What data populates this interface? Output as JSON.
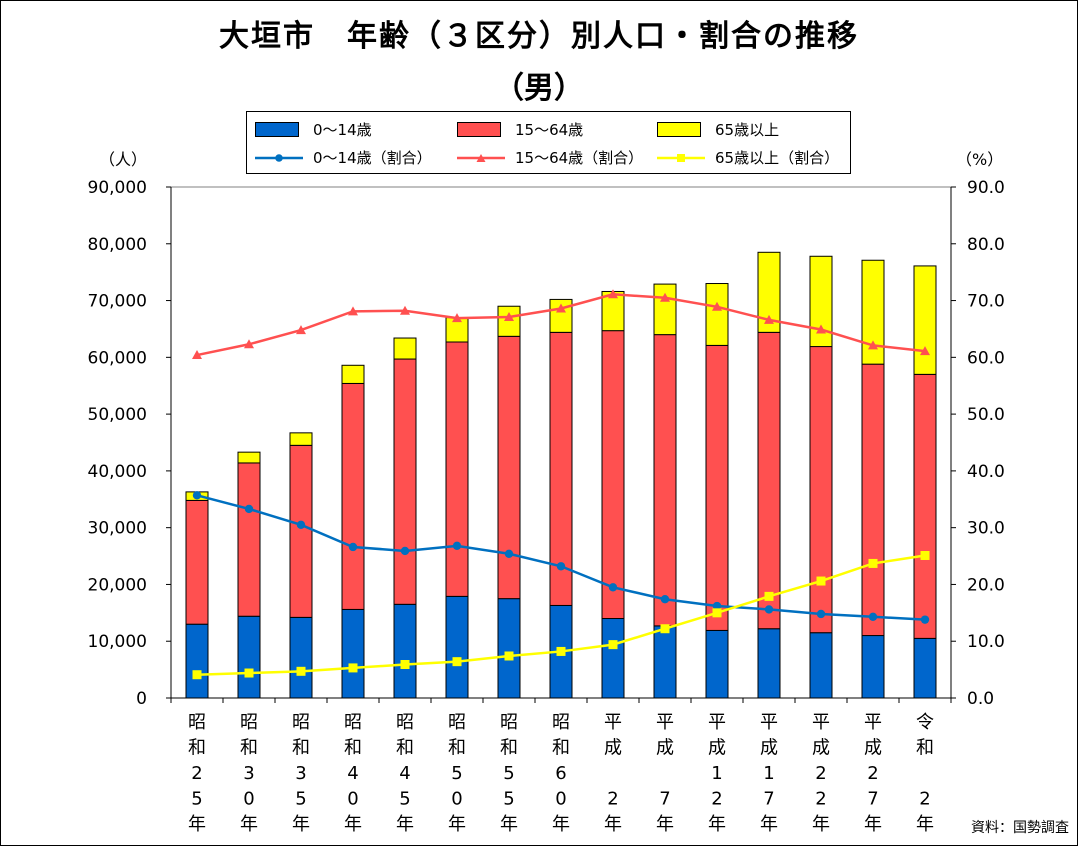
{
  "title": "大垣市　年齢（３区分）別人口・割合の推移",
  "subtitle": "（男）",
  "source": "資料：国勢調査",
  "colors": {
    "young": "#0066CC",
    "working": "#FF5050",
    "elderly": "#FFFF00",
    "young_line": "#0070C0",
    "working_line": "#FF5050",
    "elderly_line": "#FFFF00",
    "axis": "#000000"
  },
  "legend": {
    "young_bar": "0～14歳",
    "working_bar": "15～64歳",
    "elderly_bar": "65歳以上",
    "young_line": "0～14歳（割合）",
    "working_line": "15～64歳（割合）",
    "elderly_line": "65歳以上（割合）"
  },
  "chart_data": {
    "type": "bar",
    "stacked": true,
    "categories": [
      "昭和25年",
      "昭和30年",
      "昭和35年",
      "昭和40年",
      "昭和45年",
      "昭和50年",
      "昭和55年",
      "昭和60年",
      "平成2年",
      "平成7年",
      "平成12年",
      "平成17年",
      "平成22年",
      "平成27年",
      "令和2年"
    ],
    "tick_labels": [
      [
        "昭",
        "和",
        "2",
        "5",
        "年"
      ],
      [
        "昭",
        "和",
        "3",
        "0",
        "年"
      ],
      [
        "昭",
        "和",
        "3",
        "5",
        "年"
      ],
      [
        "昭",
        "和",
        "4",
        "0",
        "年"
      ],
      [
        "昭",
        "和",
        "4",
        "5",
        "年"
      ],
      [
        "昭",
        "和",
        "5",
        "0",
        "年"
      ],
      [
        "昭",
        "和",
        "5",
        "5",
        "年"
      ],
      [
        "昭",
        "和",
        "6",
        "0",
        "年"
      ],
      [
        "平",
        "成",
        "",
        "2",
        "年"
      ],
      [
        "平",
        "成",
        "",
        "7",
        "年"
      ],
      [
        "平",
        "成",
        "1",
        "2",
        "年"
      ],
      [
        "平",
        "成",
        "1",
        "7",
        "年"
      ],
      [
        "平",
        "成",
        "2",
        "2",
        "年"
      ],
      [
        "平",
        "成",
        "2",
        "7",
        "年"
      ],
      [
        "令",
        "和",
        "",
        "2",
        "年"
      ]
    ],
    "series": [
      {
        "name": "0～14歳",
        "kind": "bar",
        "axis": "left",
        "values": [
          13000,
          14400,
          14200,
          15600,
          16500,
          17900,
          17500,
          16300,
          14000,
          12700,
          11900,
          12200,
          11500,
          11000,
          10500
        ]
      },
      {
        "name": "15～64歳",
        "kind": "bar",
        "axis": "left",
        "values": [
          21800,
          27000,
          30300,
          39800,
          43200,
          44800,
          46200,
          48100,
          50700,
          51300,
          50200,
          52200,
          50400,
          47800,
          46500
        ]
      },
      {
        "name": "65歳以上",
        "kind": "bar",
        "axis": "left",
        "values": [
          1500,
          1900,
          2200,
          3200,
          3700,
          4300,
          5300,
          5800,
          6900,
          8900,
          10900,
          14100,
          15900,
          18300,
          19100
        ]
      },
      {
        "name": "0～14歳（割合）",
        "kind": "line",
        "marker": "circle",
        "axis": "right",
        "values": [
          35.7,
          33.3,
          30.5,
          26.6,
          25.9,
          26.8,
          25.4,
          23.2,
          19.5,
          17.4,
          16.2,
          15.6,
          14.8,
          14.3,
          13.8
        ]
      },
      {
        "name": "15～64歳（割合）",
        "kind": "line",
        "marker": "triangle",
        "axis": "right",
        "values": [
          60.4,
          62.3,
          64.8,
          68.1,
          68.2,
          66.9,
          67.1,
          68.6,
          71.1,
          70.5,
          68.9,
          66.6,
          64.9,
          62.1,
          61.1
        ]
      },
      {
        "name": "65歳以上（割合）",
        "kind": "line",
        "marker": "square",
        "axis": "right",
        "values": [
          4.1,
          4.4,
          4.7,
          5.3,
          5.9,
          6.4,
          7.4,
          8.2,
          9.4,
          12.2,
          15.0,
          17.9,
          20.6,
          23.7,
          25.1
        ]
      }
    ],
    "left_axis": {
      "unit": "（人）",
      "ylim": [
        0,
        90000
      ],
      "ticks": [
        "0",
        "10,000",
        "20,000",
        "30,000",
        "40,000",
        "50,000",
        "60,000",
        "70,000",
        "80,000",
        "90,000"
      ]
    },
    "right_axis": {
      "unit": "（%）",
      "ylim": [
        0,
        90
      ],
      "ticks": [
        "0.0",
        "10.0",
        "20.0",
        "30.0",
        "40.0",
        "50.0",
        "60.0",
        "70.0",
        "80.0",
        "90.0"
      ]
    },
    "grid": false,
    "legend_position": "top"
  }
}
